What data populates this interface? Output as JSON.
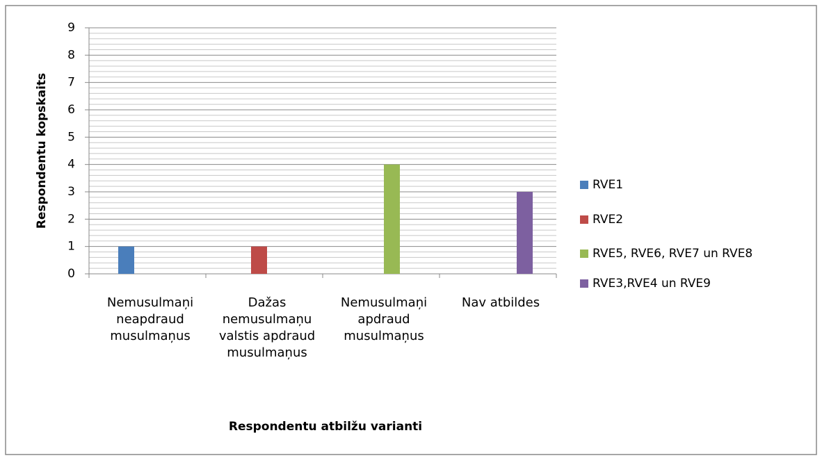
{
  "chart_data": {
    "type": "bar",
    "categories": [
      "Nemusulmaņi neapdraud musulmaņus",
      "Dažas nemusulmaņu valstis apdraud musulmaņus",
      "Nemusulmaņi apdraud musulmaņus",
      "Nav atbildes"
    ],
    "series": [
      {
        "name": "RVE1",
        "color": "#4a7ebb",
        "values": [
          1,
          0,
          0,
          0
        ]
      },
      {
        "name": "RVE2",
        "color": "#be4b48",
        "values": [
          0,
          1,
          0,
          0
        ]
      },
      {
        "name": "RVE5, RVE6, RVE7 un RVE8",
        "color": "#98b954",
        "values": [
          0,
          0,
          4,
          0
        ]
      },
      {
        "name": "RVE3,RVE4 un RVE9",
        "color": "#7d60a0",
        "values": [
          0,
          0,
          0,
          3
        ]
      }
    ],
    "ylim": [
      0,
      9
    ],
    "yticks": [
      0,
      1,
      2,
      3,
      4,
      5,
      6,
      7,
      8,
      9
    ],
    "grid": true,
    "y_label": "Respondentu kopskaits",
    "x_label": "Respondentu atbilžu varianti",
    "legend": "right"
  }
}
